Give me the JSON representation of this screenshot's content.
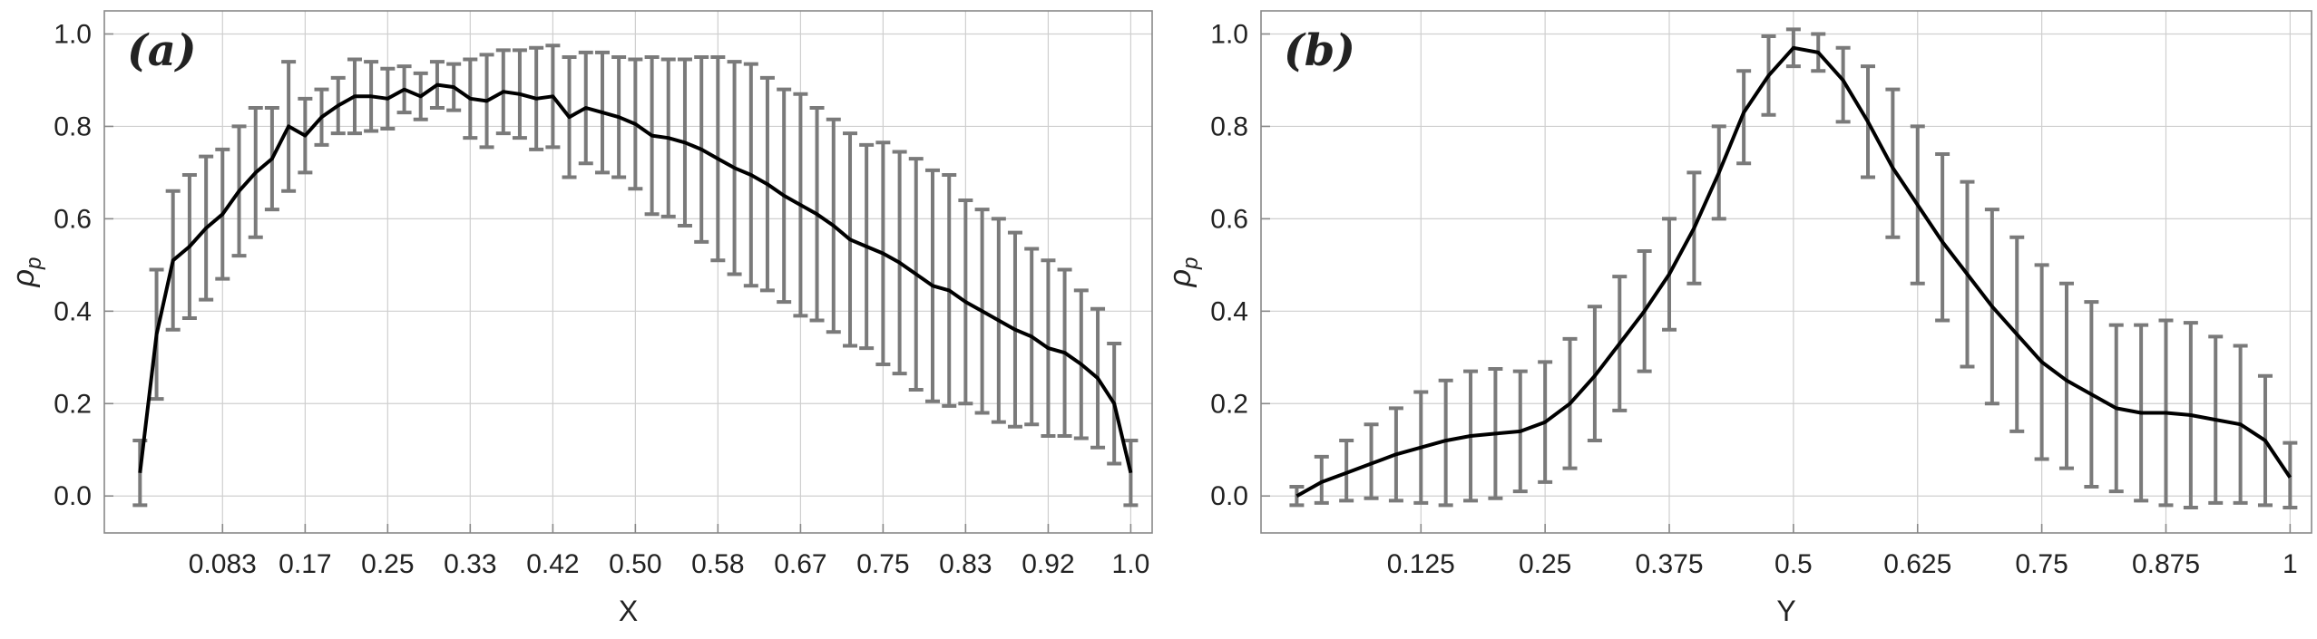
{
  "colors": {
    "line": "#000000",
    "errorbar": "#7a7a7a",
    "grid": "#cfcfcf",
    "frame": "#888888"
  },
  "chart_data": [
    {
      "type": "line",
      "panel_label": "(a)",
      "xlabel": "X",
      "ylabel": "ρ_p",
      "xlim": [
        0.0,
        1.0
      ],
      "ylim": [
        -0.08,
        1.05
      ],
      "grid": true,
      "xticks": [
        {
          "value": 0.0833,
          "label": "0.083"
        },
        {
          "value": 0.1667,
          "label": "0.17"
        },
        {
          "value": 0.25,
          "label": "0.25"
        },
        {
          "value": 0.3333,
          "label": "0.33"
        },
        {
          "value": 0.4167,
          "label": "0.42"
        },
        {
          "value": 0.5,
          "label": "0.50"
        },
        {
          "value": 0.5833,
          "label": "0.58"
        },
        {
          "value": 0.6667,
          "label": "0.67"
        },
        {
          "value": 0.75,
          "label": "0.75"
        },
        {
          "value": 0.8333,
          "label": "0.83"
        },
        {
          "value": 0.9167,
          "label": "0.92"
        },
        {
          "value": 1.0,
          "label": "1.0"
        }
      ],
      "yticks": [
        {
          "value": 0.0,
          "label": "0.0"
        },
        {
          "value": 0.2,
          "label": "0.2"
        },
        {
          "value": 0.4,
          "label": "0.4"
        },
        {
          "value": 0.6,
          "label": "0.6"
        },
        {
          "value": 0.8,
          "label": "0.8"
        },
        {
          "value": 1.0,
          "label": "1.0"
        }
      ],
      "series": [
        {
          "x": [
            0.0,
            0.0167,
            0.0333,
            0.05,
            0.0667,
            0.0833,
            0.1,
            0.1167,
            0.1333,
            0.15,
            0.1667,
            0.1833,
            0.2,
            0.2167,
            0.2333,
            0.25,
            0.2667,
            0.2833,
            0.3,
            0.3167,
            0.3333,
            0.35,
            0.3667,
            0.3833,
            0.4,
            0.4167,
            0.4333,
            0.45,
            0.4667,
            0.4833,
            0.5,
            0.5167,
            0.5333,
            0.55,
            0.5667,
            0.5833,
            0.6,
            0.6167,
            0.6333,
            0.65,
            0.6667,
            0.6833,
            0.7,
            0.7167,
            0.7333,
            0.75,
            0.7667,
            0.7833,
            0.8,
            0.8167,
            0.8333,
            0.85,
            0.8667,
            0.8833,
            0.9,
            0.9167,
            0.9333,
            0.95,
            0.9667,
            0.9833,
            1.0
          ],
          "y": [
            0.05,
            0.35,
            0.51,
            0.54,
            0.58,
            0.61,
            0.66,
            0.7,
            0.73,
            0.8,
            0.78,
            0.82,
            0.845,
            0.865,
            0.865,
            0.86,
            0.88,
            0.865,
            0.89,
            0.885,
            0.86,
            0.855,
            0.875,
            0.87,
            0.86,
            0.865,
            0.82,
            0.84,
            0.83,
            0.82,
            0.805,
            0.78,
            0.775,
            0.765,
            0.75,
            0.73,
            0.71,
            0.695,
            0.675,
            0.65,
            0.63,
            0.61,
            0.585,
            0.555,
            0.54,
            0.525,
            0.505,
            0.48,
            0.455,
            0.445,
            0.42,
            0.4,
            0.38,
            0.36,
            0.345,
            0.32,
            0.31,
            0.285,
            0.255,
            0.2,
            0.05
          ],
          "err": [
            0.07,
            0.14,
            0.15,
            0.155,
            0.155,
            0.14,
            0.14,
            0.14,
            0.11,
            0.14,
            0.08,
            0.06,
            0.06,
            0.08,
            0.075,
            0.065,
            0.05,
            0.05,
            0.05,
            0.05,
            0.085,
            0.1,
            0.09,
            0.095,
            0.11,
            0.11,
            0.13,
            0.12,
            0.13,
            0.13,
            0.14,
            0.17,
            0.17,
            0.18,
            0.2,
            0.22,
            0.23,
            0.24,
            0.23,
            0.23,
            0.24,
            0.23,
            0.23,
            0.23,
            0.22,
            0.24,
            0.24,
            0.25,
            0.25,
            0.25,
            0.22,
            0.22,
            0.22,
            0.21,
            0.19,
            0.19,
            0.18,
            0.16,
            0.15,
            0.13,
            0.07
          ]
        }
      ]
    },
    {
      "type": "line",
      "panel_label": "(b)",
      "xlabel": "Y",
      "ylabel": "ρ_p",
      "xlim": [
        0.0,
        1.0
      ],
      "ylim": [
        -0.08,
        1.05
      ],
      "grid": true,
      "xticks": [
        {
          "value": 0.125,
          "label": "0.125"
        },
        {
          "value": 0.25,
          "label": "0.25"
        },
        {
          "value": 0.375,
          "label": "0.375"
        },
        {
          "value": 0.5,
          "label": "0.5"
        },
        {
          "value": 0.625,
          "label": "0.625"
        },
        {
          "value": 0.75,
          "label": "0.75"
        },
        {
          "value": 0.875,
          "label": "0.875"
        },
        {
          "value": 1.0,
          "label": "1"
        }
      ],
      "yticks": [
        {
          "value": 0.0,
          "label": "0.0"
        },
        {
          "value": 0.2,
          "label": "0.2"
        },
        {
          "value": 0.4,
          "label": "0.4"
        },
        {
          "value": 0.6,
          "label": "0.6"
        },
        {
          "value": 0.8,
          "label": "0.8"
        },
        {
          "value": 1.0,
          "label": "1.0"
        }
      ],
      "series": [
        {
          "x": [
            0.0,
            0.025,
            0.05,
            0.075,
            0.1,
            0.125,
            0.15,
            0.175,
            0.2,
            0.225,
            0.25,
            0.275,
            0.3,
            0.325,
            0.35,
            0.375,
            0.4,
            0.425,
            0.45,
            0.475,
            0.5,
            0.525,
            0.55,
            0.575,
            0.6,
            0.625,
            0.65,
            0.675,
            0.7,
            0.725,
            0.75,
            0.775,
            0.8,
            0.825,
            0.85,
            0.875,
            0.9,
            0.925,
            0.95,
            0.975,
            1.0
          ],
          "y": [
            0.0,
            0.03,
            0.05,
            0.07,
            0.09,
            0.105,
            0.12,
            0.13,
            0.135,
            0.14,
            0.16,
            0.2,
            0.26,
            0.33,
            0.4,
            0.48,
            0.58,
            0.7,
            0.83,
            0.91,
            0.97,
            0.96,
            0.9,
            0.81,
            0.71,
            0.63,
            0.55,
            0.48,
            0.41,
            0.35,
            0.29,
            0.25,
            0.22,
            0.19,
            0.18,
            0.18,
            0.175,
            0.165,
            0.155,
            0.12,
            0.04
          ]
        }
      ],
      "errorbars": {
        "x": [
          0.0,
          0.025,
          0.05,
          0.075,
          0.1,
          0.125,
          0.15,
          0.175,
          0.2,
          0.225,
          0.25,
          0.275,
          0.3,
          0.325,
          0.35,
          0.375,
          0.4,
          0.425,
          0.45,
          0.475,
          0.5,
          0.525,
          0.55,
          0.575,
          0.6,
          0.625,
          0.65,
          0.675,
          0.7,
          0.725,
          0.75,
          0.775,
          0.8,
          0.825,
          0.85,
          0.875,
          0.9,
          0.925,
          0.95,
          0.975,
          1.0
        ],
        "center": [
          0.0,
          0.035,
          0.055,
          0.075,
          0.09,
          0.105,
          0.115,
          0.13,
          0.135,
          0.14,
          0.16,
          0.2,
          0.265,
          0.33,
          0.4,
          0.48,
          0.58,
          0.7,
          0.82,
          0.91,
          0.97,
          0.96,
          0.89,
          0.81,
          0.72,
          0.63,
          0.56,
          0.48,
          0.41,
          0.35,
          0.29,
          0.26,
          0.22,
          0.19,
          0.18,
          0.18,
          0.175,
          0.165,
          0.155,
          0.12,
          0.045
        ],
        "err": [
          0.02,
          0.05,
          0.065,
          0.08,
          0.1,
          0.12,
          0.135,
          0.14,
          0.14,
          0.13,
          0.13,
          0.14,
          0.145,
          0.145,
          0.13,
          0.12,
          0.12,
          0.1,
          0.1,
          0.085,
          0.04,
          0.04,
          0.08,
          0.12,
          0.16,
          0.17,
          0.18,
          0.2,
          0.21,
          0.21,
          0.21,
          0.2,
          0.2,
          0.18,
          0.19,
          0.2,
          0.2,
          0.18,
          0.17,
          0.14,
          0.07
        ]
      }
    }
  ]
}
